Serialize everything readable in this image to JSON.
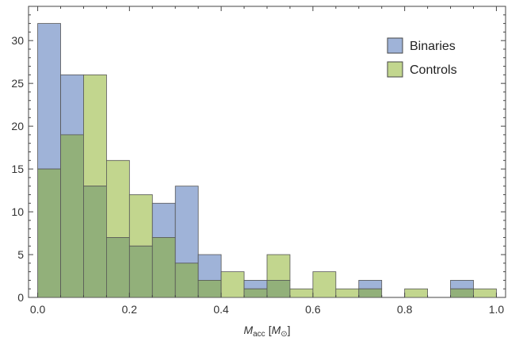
{
  "chart_data": {
    "type": "histogram",
    "bin_edges": [
      0.0,
      0.05,
      0.1,
      0.15,
      0.2,
      0.25,
      0.3,
      0.35,
      0.4,
      0.45,
      0.5,
      0.55,
      0.6,
      0.65,
      0.7,
      0.75,
      0.8,
      0.85,
      0.9,
      0.95,
      1.0
    ],
    "series": [
      {
        "name": "Binaries",
        "color": "#9fb3d8",
        "values": [
          32,
          26,
          13,
          7,
          6,
          11,
          13,
          5,
          0,
          2,
          2,
          0,
          0,
          0,
          2,
          0,
          0,
          0,
          2,
          0
        ]
      },
      {
        "name": "Controls",
        "color": "#c2d68e",
        "values": [
          15,
          19,
          26,
          16,
          12,
          7,
          4,
          2,
          3,
          1,
          5,
          1,
          3,
          1,
          1,
          0,
          1,
          0,
          1,
          1
        ]
      }
    ],
    "overlap_color": "#92b07a",
    "xlim": [
      -0.02,
      1.02
    ],
    "ylim": [
      0,
      34
    ],
    "xticks": [
      0.0,
      0.2,
      0.4,
      0.6,
      0.8,
      1.0
    ],
    "xtick_labels": [
      "0.0",
      "0.2",
      "0.4",
      "0.6",
      "0.8",
      "1.0"
    ],
    "yticks": [
      0,
      5,
      10,
      15,
      20,
      25,
      30
    ],
    "ytick_labels": [
      "0",
      "5",
      "10",
      "15",
      "20",
      "25",
      "30"
    ],
    "xlabel": {
      "main": "M",
      "sub": "acc",
      "bracket_open": "[",
      "unit_main": "M",
      "unit_sub": "⊙",
      "bracket_close": "]"
    },
    "ylabel": "",
    "title": "",
    "grid": false,
    "legend_position": "top-right"
  }
}
